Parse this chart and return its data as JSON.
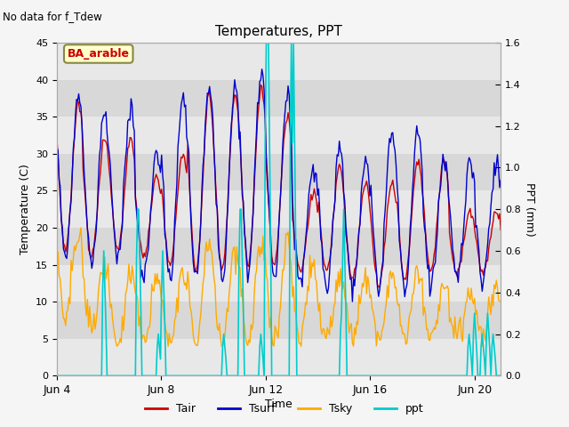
{
  "title": "Temperatures, PPT",
  "subtitle": "No data for f_Tdew",
  "xlabel": "Time",
  "ylabel_left": "Temperature (C)",
  "ylabel_right": "PPT (mm)",
  "annotation": "BA_arable",
  "xlim": [
    4,
    21
  ],
  "ylim_left": [
    0,
    45
  ],
  "ylim_right": [
    0.0,
    1.6
  ],
  "yticks_left": [
    0,
    5,
    10,
    15,
    20,
    25,
    30,
    35,
    40,
    45
  ],
  "yticks_right": [
    0.0,
    0.2,
    0.4,
    0.6,
    0.8,
    1.0,
    1.2,
    1.4,
    1.6
  ],
  "xtick_labels": [
    "Jun 4",
    "Jun 8",
    "Jun 12",
    "Jun 16",
    "Jun 20"
  ],
  "xtick_positions": [
    4,
    8,
    12,
    16,
    20
  ],
  "colors": {
    "Tair": "#cc0000",
    "Tsurf": "#0000cc",
    "Tsky": "#ffaa00",
    "ppt": "#00cccc",
    "bg_band1": "#e8e8e8",
    "bg_band2": "#d8d8d8",
    "fig_bg": "#f5f5f5"
  },
  "band_boundaries": [
    0,
    5,
    10,
    15,
    20,
    25,
    30,
    35,
    40,
    45
  ],
  "legend_labels": [
    "Tair",
    "Tsurf",
    "Tsky",
    "ppt"
  ]
}
